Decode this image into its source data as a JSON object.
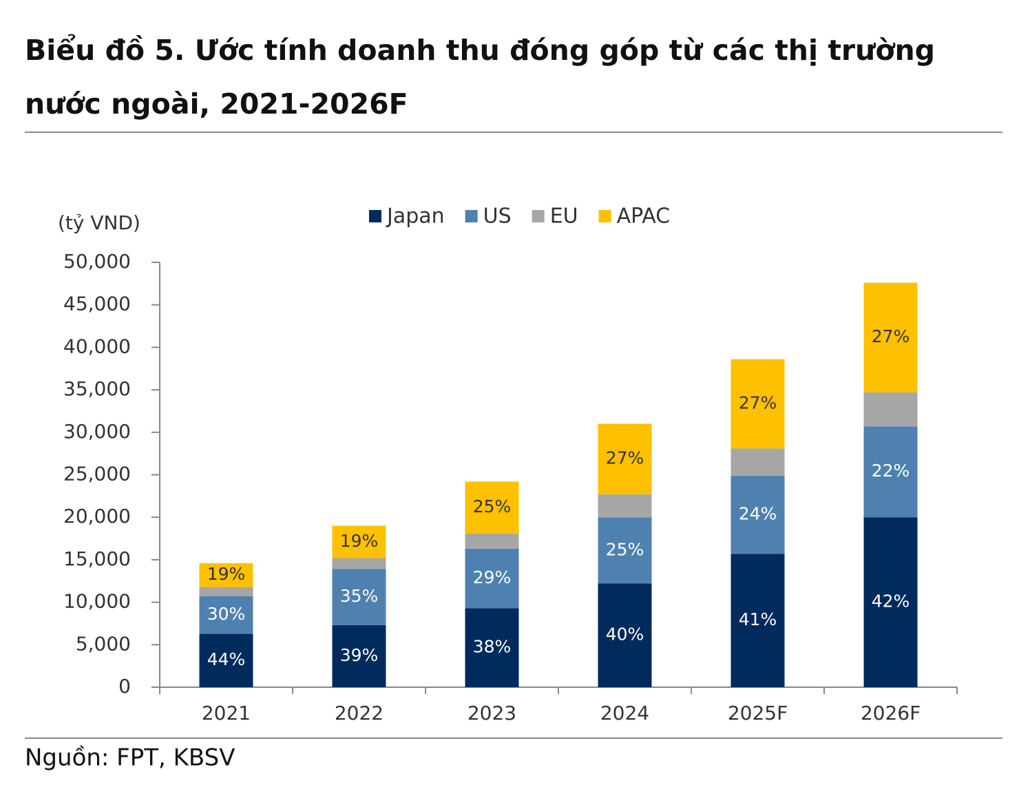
{
  "chart_data": {
    "type": "stacked-bar",
    "title": "Biểu đồ 5. Ước tính doanh thu đóng góp từ các thị trường nước ngoài, 2021-2026F",
    "y_label": "(tỷ VND)",
    "source": "Nguồn: FPT, KBSV",
    "categories": [
      "2021",
      "2022",
      "2023",
      "2024",
      "2025F",
      "2026F"
    ],
    "series": [
      {
        "name": "Japan",
        "color": "#002b5c",
        "values": [
          6300,
          7300,
          9300,
          12200,
          15700,
          20000
        ],
        "share_labels": [
          "44%",
          "39%",
          "38%",
          "40%",
          "41%",
          "42%"
        ],
        "label_color": "#ffffff"
      },
      {
        "name": "US",
        "color": "#4f81b0",
        "values": [
          4400,
          6600,
          7000,
          7800,
          9200,
          10700
        ],
        "share_labels": [
          "30%",
          "35%",
          "29%",
          "25%",
          "24%",
          "22%"
        ],
        "label_color": "#ffffff"
      },
      {
        "name": "EU",
        "color": "#a6a6a6",
        "values": [
          1100,
          1300,
          1800,
          2700,
          3200,
          4000
        ]
      },
      {
        "name": "APAC",
        "color": "#ffc000",
        "values": [
          2800,
          3800,
          6100,
          8300,
          10500,
          12900
        ],
        "share_labels": [
          "19%",
          "19%",
          "25%",
          "27%",
          "27%",
          "27%"
        ],
        "label_color": "#333333"
      }
    ],
    "ylim": [
      0,
      50000
    ],
    "yticks": [
      0,
      {
        "value": 5000,
        "label": "5,000"
      },
      {
        "value": 10000,
        "label": "10,000"
      },
      {
        "value": 15000,
        "label": "15,000"
      },
      {
        "value": 20000,
        "label": "20,000"
      },
      {
        "value": 25000,
        "label": "25,000"
      },
      {
        "value": 30000,
        "label": "30,000"
      },
      {
        "value": 35000,
        "label": "35,000"
      },
      {
        "value": 40000,
        "label": "40,000"
      },
      {
        "value": 45000,
        "label": "45,000"
      },
      {
        "value": 50000,
        "label": "50,000"
      }
    ]
  }
}
